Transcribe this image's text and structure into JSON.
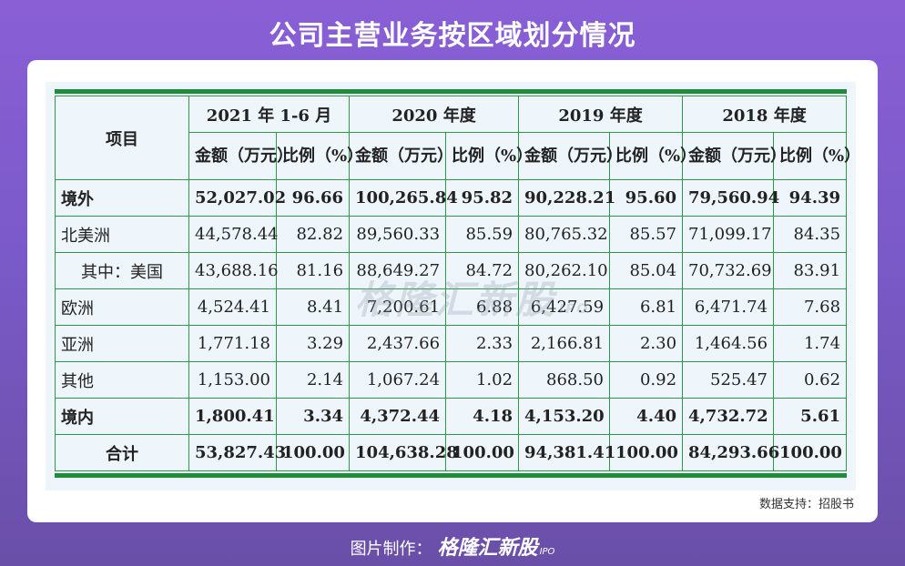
{
  "title": "公司主营业务按区域划分情况",
  "header": {
    "item_label": "项目",
    "periods": [
      "2021 年 1-6 月",
      "2020 年度",
      "2019 年度",
      "2018 年度"
    ],
    "amount_label": "金额（万元）",
    "ratio_label": "比例（%）"
  },
  "rows": [
    {
      "label": "境外",
      "bold": true,
      "values": [
        "52,027.02",
        "96.66",
        "100,265.84",
        "95.82",
        "90,228.21",
        "95.60",
        "79,560.94",
        "94.39"
      ]
    },
    {
      "label": "北美洲",
      "values": [
        "44,578.44",
        "82.82",
        "89,560.33",
        "85.59",
        "80,765.32",
        "85.57",
        "71,099.17",
        "84.35"
      ]
    },
    {
      "label": "其中：美国",
      "indent": true,
      "values": [
        "43,688.16",
        "81.16",
        "88,649.27",
        "84.72",
        "80,262.10",
        "85.04",
        "70,732.69",
        "83.91"
      ]
    },
    {
      "label": "欧洲",
      "values": [
        "4,524.41",
        "8.41",
        "7,200.61",
        "6.88",
        "6,427.59",
        "6.81",
        "6,471.74",
        "7.68"
      ]
    },
    {
      "label": "亚洲",
      "values": [
        "1,771.18",
        "3.29",
        "2,437.66",
        "2.33",
        "2,166.81",
        "2.30",
        "1,464.56",
        "1.74"
      ]
    },
    {
      "label": "其他",
      "values": [
        "1,153.00",
        "2.14",
        "1,067.24",
        "1.02",
        "868.50",
        "0.92",
        "525.47",
        "0.62"
      ]
    },
    {
      "label": "境内",
      "bold": true,
      "values": [
        "1,800.41",
        "3.34",
        "4,372.44",
        "4.18",
        "4,153.20",
        "4.40",
        "4,732.72",
        "5.61"
      ]
    },
    {
      "label": "合计",
      "bold": true,
      "center": true,
      "values": [
        "53,827.43",
        "100.00",
        "104,638.28",
        "100.00",
        "94,381.41",
        "100.00",
        "84,293.66",
        "100.00"
      ]
    }
  ],
  "watermark": {
    "text": "格隆汇新股",
    "sub": "IPO"
  },
  "source": "数据支持：招股书",
  "footer": {
    "prefix": "图片制作：",
    "brand": "格隆汇新股",
    "ipo": "IPO"
  },
  "colors": {
    "accent_green": "#1f8c3a",
    "background": "#8a5fd6"
  }
}
